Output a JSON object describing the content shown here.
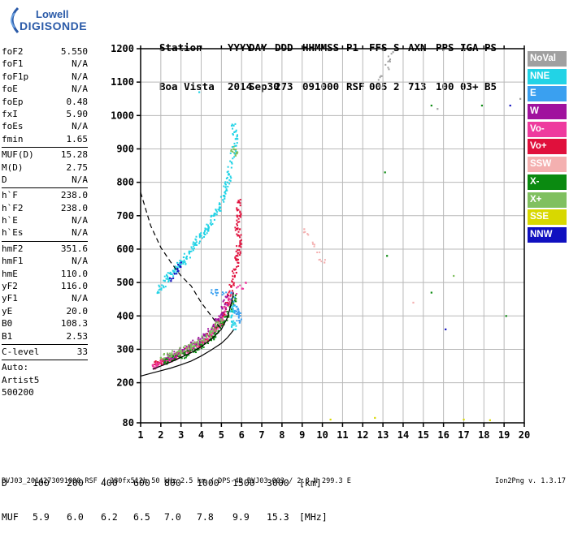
{
  "logo": {
    "line1": "Lowell",
    "line2": "DIGISONDE"
  },
  "header": {
    "labels": [
      "Station",
      "YYYY",
      "DAY",
      "DDD",
      "HHMMSS",
      "P1",
      "FFS",
      "S",
      "AXN",
      "PPS",
      "IGA",
      "PS"
    ],
    "values": [
      "Boa Vista",
      "2014",
      "Sep30",
      "273",
      "091000",
      "RSF",
      "005",
      "2",
      "713",
      "100",
      "03+",
      "B5"
    ]
  },
  "params": [
    {
      "name": "foF2",
      "value": "5.550"
    },
    {
      "name": "foF1",
      "value": "N/A"
    },
    {
      "name": "foF1p",
      "value": "N/A"
    },
    {
      "name": "foE",
      "value": "N/A"
    },
    {
      "name": "foEp",
      "value": "0.48"
    },
    {
      "name": "fxI",
      "value": "5.90"
    },
    {
      "name": "foEs",
      "value": "N/A"
    },
    {
      "name": "fmin",
      "value": "1.65"
    },
    {
      "name": "MUF(D)",
      "value": "15.28"
    },
    {
      "name": "M(D)",
      "value": "2.75"
    },
    {
      "name": "D",
      "value": "N/A"
    },
    {
      "name": "h`F",
      "value": "238.0"
    },
    {
      "name": "h`F2",
      "value": "238.0"
    },
    {
      "name": "h`E",
      "value": "N/A"
    },
    {
      "name": "h`Es",
      "value": "N/A"
    },
    {
      "name": "hmF2",
      "value": "351.6"
    },
    {
      "name": "hmF1",
      "value": "N/A"
    },
    {
      "name": "hmE",
      "value": "110.0"
    },
    {
      "name": "yF2",
      "value": "116.0"
    },
    {
      "name": "yF1",
      "value": "N/A"
    },
    {
      "name": "yE",
      "value": "20.0"
    },
    {
      "name": "B0",
      "value": "108.3"
    },
    {
      "name": "B1",
      "value": "2.53"
    },
    {
      "name": "C-level",
      "value": "33"
    },
    {
      "name": "Auto:",
      "value": ""
    },
    {
      "name": "Artist5",
      "value": ""
    },
    {
      "name": "500200",
      "value": ""
    }
  ],
  "legend": [
    {
      "label": "NoVal",
      "color": "#a0a0a0"
    },
    {
      "label": "NNE",
      "color": "#22d3e6"
    },
    {
      "label": "E",
      "color": "#3aa0f0"
    },
    {
      "label": "W",
      "color": "#a0129e"
    },
    {
      "label": "Vo-",
      "color": "#ee3a9e"
    },
    {
      "label": "Vo+",
      "color": "#e0103c"
    },
    {
      "label": "SSW",
      "color": "#f4b0b0"
    },
    {
      "label": "X-",
      "color": "#0a8a10"
    },
    {
      "label": "X+",
      "color": "#80c060"
    },
    {
      "label": "SSE",
      "color": "#d8d800"
    },
    {
      "label": "NNW",
      "color": "#1010c0"
    }
  ],
  "muf_table": {
    "d_label": "D",
    "d_values": [
      "100",
      "200",
      "400",
      "600",
      "800",
      "1000",
      "1500",
      "3000"
    ],
    "d_unit": "[km]",
    "muf_label": "MUF",
    "muf_values": [
      "5.9",
      "6.0",
      "6.2",
      "6.5",
      "7.0",
      "7.8",
      "9.9",
      "15.3"
    ],
    "muf_unit": "[MHz]"
  },
  "footer": "BVJ03_2014273091000.RSF / 380fx512h 50 kHz 2.5 km / DPS-4D BVJ03 003 / 2.8 N 299.3 E",
  "version": "Ion2Png v. 1.3.17",
  "chart_data": {
    "type": "scatter",
    "x_ticks": [
      1,
      2,
      3,
      4,
      5,
      6,
      7,
      8,
      9,
      10,
      11,
      12,
      13,
      14,
      15,
      16,
      17,
      18,
      19,
      20
    ],
    "y_ticks": [
      80,
      200,
      300,
      400,
      500,
      600,
      700,
      800,
      900,
      1000,
      1100,
      1200
    ],
    "xlim": [
      1,
      20
    ],
    "ylim": [
      80,
      1200
    ],
    "grid": true,
    "legend_position": "right",
    "series": [
      {
        "name": "Vo+",
        "color": "#e0103c",
        "points": [
          [
            1.7,
            255
          ],
          [
            2.0,
            262
          ],
          [
            2.4,
            270
          ],
          [
            2.8,
            282
          ],
          [
            3.2,
            292
          ],
          [
            3.6,
            305
          ],
          [
            4.0,
            318
          ],
          [
            4.4,
            338
          ],
          [
            4.8,
            368
          ],
          [
            5.1,
            400
          ],
          [
            5.3,
            440
          ],
          [
            5.5,
            490
          ],
          [
            5.7,
            540
          ],
          [
            5.8,
            580
          ],
          [
            5.9,
            610
          ],
          [
            5.8,
            660
          ],
          [
            5.9,
            700
          ],
          [
            5.85,
            745
          ]
        ]
      },
      {
        "name": "Vo-",
        "color": "#ee3a9e",
        "points": [
          [
            1.6,
            250
          ],
          [
            1.9,
            258
          ],
          [
            2.3,
            266
          ],
          [
            2.7,
            276
          ],
          [
            3.1,
            288
          ],
          [
            3.5,
            300
          ],
          [
            3.9,
            314
          ],
          [
            4.3,
            332
          ],
          [
            4.7,
            360
          ],
          [
            5.0,
            390
          ],
          [
            5.4,
            450
          ],
          [
            6.2,
            500
          ]
        ]
      },
      {
        "name": "W",
        "color": "#a0129e",
        "points": [
          [
            2.2,
            272
          ],
          [
            2.6,
            280
          ],
          [
            3.0,
            294
          ],
          [
            3.4,
            306
          ],
          [
            3.8,
            322
          ],
          [
            4.2,
            340
          ],
          [
            4.6,
            370
          ],
          [
            5.0,
            405
          ],
          [
            5.3,
            460
          ]
        ]
      },
      {
        "name": "X-",
        "color": "#0a8a10",
        "points": [
          [
            2.2,
            262
          ],
          [
            2.7,
            272
          ],
          [
            3.2,
            285
          ],
          [
            3.7,
            300
          ],
          [
            4.2,
            318
          ],
          [
            4.7,
            344
          ],
          [
            5.1,
            380
          ],
          [
            5.5,
            420
          ],
          [
            5.7,
            462
          ],
          [
            13.1,
            830
          ],
          [
            13.2,
            580
          ],
          [
            15.4,
            470
          ],
          [
            15.4,
            1030
          ],
          [
            17.9,
            1030
          ],
          [
            19.1,
            400
          ]
        ]
      },
      {
        "name": "X+",
        "color": "#80c060",
        "points": [
          [
            2.0,
            275
          ],
          [
            2.5,
            284
          ],
          [
            3.0,
            296
          ],
          [
            3.5,
            310
          ],
          [
            4.0,
            326
          ],
          [
            4.5,
            350
          ],
          [
            5.0,
            390
          ],
          [
            5.6,
            900
          ],
          [
            5.7,
            880
          ],
          [
            16.5,
            520
          ]
        ]
      },
      {
        "name": "NNE",
        "color": "#22d3e6",
        "points": [
          [
            1.9,
            470
          ],
          [
            2.2,
            505
          ],
          [
            2.5,
            525
          ],
          [
            2.8,
            545
          ],
          [
            3.1,
            560
          ],
          [
            3.4,
            590
          ],
          [
            3.7,
            615
          ],
          [
            4.0,
            640
          ],
          [
            4.3,
            660
          ],
          [
            4.6,
            700
          ],
          [
            4.9,
            725
          ],
          [
            5.1,
            760
          ],
          [
            5.3,
            800
          ],
          [
            5.5,
            860
          ],
          [
            5.7,
            930
          ],
          [
            5.6,
            970
          ],
          [
            3.9,
            1070
          ],
          [
            5.6,
            430
          ],
          [
            5.5,
            400
          ],
          [
            5.7,
            360
          ]
        ]
      },
      {
        "name": "E",
        "color": "#3aa0f0",
        "points": [
          [
            5.8,
            420
          ],
          [
            5.9,
            380
          ],
          [
            5.5,
            470
          ],
          [
            4.5,
            470
          ]
        ]
      },
      {
        "name": "NNW",
        "color": "#1010c0",
        "points": [
          [
            2.5,
            505
          ],
          [
            3.0,
            560
          ],
          [
            16.1,
            360
          ],
          [
            19.3,
            1030
          ]
        ]
      },
      {
        "name": "SSE",
        "color": "#d8d800",
        "points": [
          [
            10.4,
            90
          ],
          [
            12.6,
            95
          ],
          [
            17.0,
            90
          ],
          [
            18.3,
            88
          ]
        ]
      },
      {
        "name": "SSW",
        "color": "#f4b0b0",
        "points": [
          [
            9.1,
            660
          ],
          [
            10.1,
            560
          ],
          [
            14.5,
            440
          ]
        ]
      },
      {
        "name": "NoVal",
        "color": "#a0a0a0",
        "points": [
          [
            12.8,
            1090
          ],
          [
            13.5,
            1190
          ],
          [
            15.7,
            1020
          ],
          [
            19.8,
            1050
          ]
        ]
      }
    ],
    "curves": [
      {
        "style": "dashed",
        "points": [
          [
            1.0,
            770
          ],
          [
            1.5,
            670
          ],
          [
            2.0,
            605
          ],
          [
            2.5,
            560
          ],
          [
            3.0,
            520
          ],
          [
            3.5,
            490
          ],
          [
            4.0,
            440
          ],
          [
            4.5,
            400
          ],
          [
            5.0,
            360
          ]
        ]
      },
      {
        "style": "solid",
        "points": [
          [
            1.0,
            220
          ],
          [
            1.5,
            228
          ],
          [
            2.0,
            236
          ],
          [
            2.5,
            244
          ],
          [
            3.0,
            254
          ],
          [
            3.5,
            265
          ],
          [
            4.0,
            280
          ],
          [
            4.5,
            298
          ],
          [
            5.0,
            318
          ],
          [
            5.3,
            335
          ],
          [
            5.5,
            350
          ],
          [
            5.6,
            358
          ]
        ]
      },
      {
        "style": "solid",
        "points": [
          [
            1.6,
            240
          ],
          [
            2.0,
            250
          ],
          [
            2.5,
            262
          ],
          [
            3.0,
            276
          ],
          [
            3.5,
            290
          ],
          [
            4.0,
            308
          ],
          [
            4.5,
            330
          ],
          [
            5.0,
            360
          ],
          [
            5.3,
            395
          ],
          [
            5.5,
            440
          ],
          [
            5.6,
            470
          ]
        ]
      }
    ]
  }
}
